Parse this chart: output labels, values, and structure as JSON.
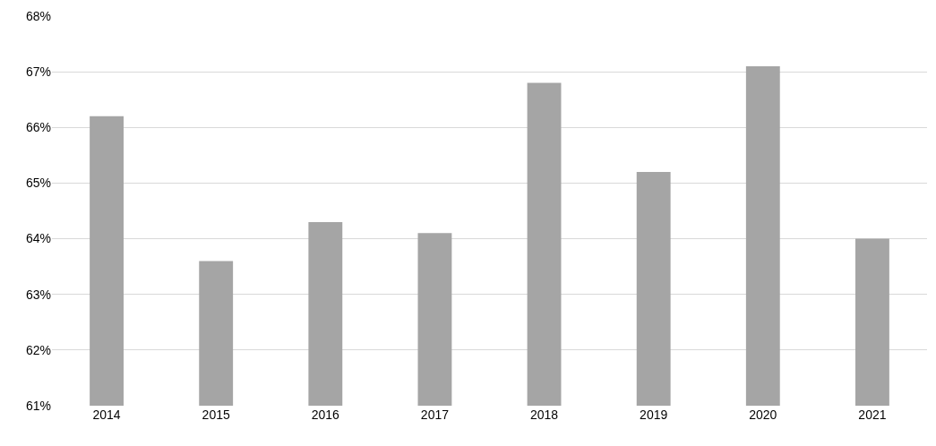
{
  "chart_data": {
    "type": "bar",
    "categories": [
      "2014",
      "2015",
      "2016",
      "2017",
      "2018",
      "2019",
      "2020",
      "2021"
    ],
    "values": [
      66.2,
      63.6,
      64.3,
      64.1,
      66.8,
      65.2,
      67.1,
      64.0
    ],
    "color": "#a5a5a5",
    "ylim": [
      61,
      68
    ],
    "yticks": [
      {
        "value": 61,
        "label": "61%"
      },
      {
        "value": 62,
        "label": "62%"
      },
      {
        "value": 63,
        "label": "63%"
      },
      {
        "value": 64,
        "label": "64%"
      },
      {
        "value": 65,
        "label": "65%"
      },
      {
        "value": 66,
        "label": "66%"
      },
      {
        "value": 67,
        "label": "67%"
      },
      {
        "value": 68,
        "label": "68%"
      }
    ],
    "grid": "y"
  }
}
